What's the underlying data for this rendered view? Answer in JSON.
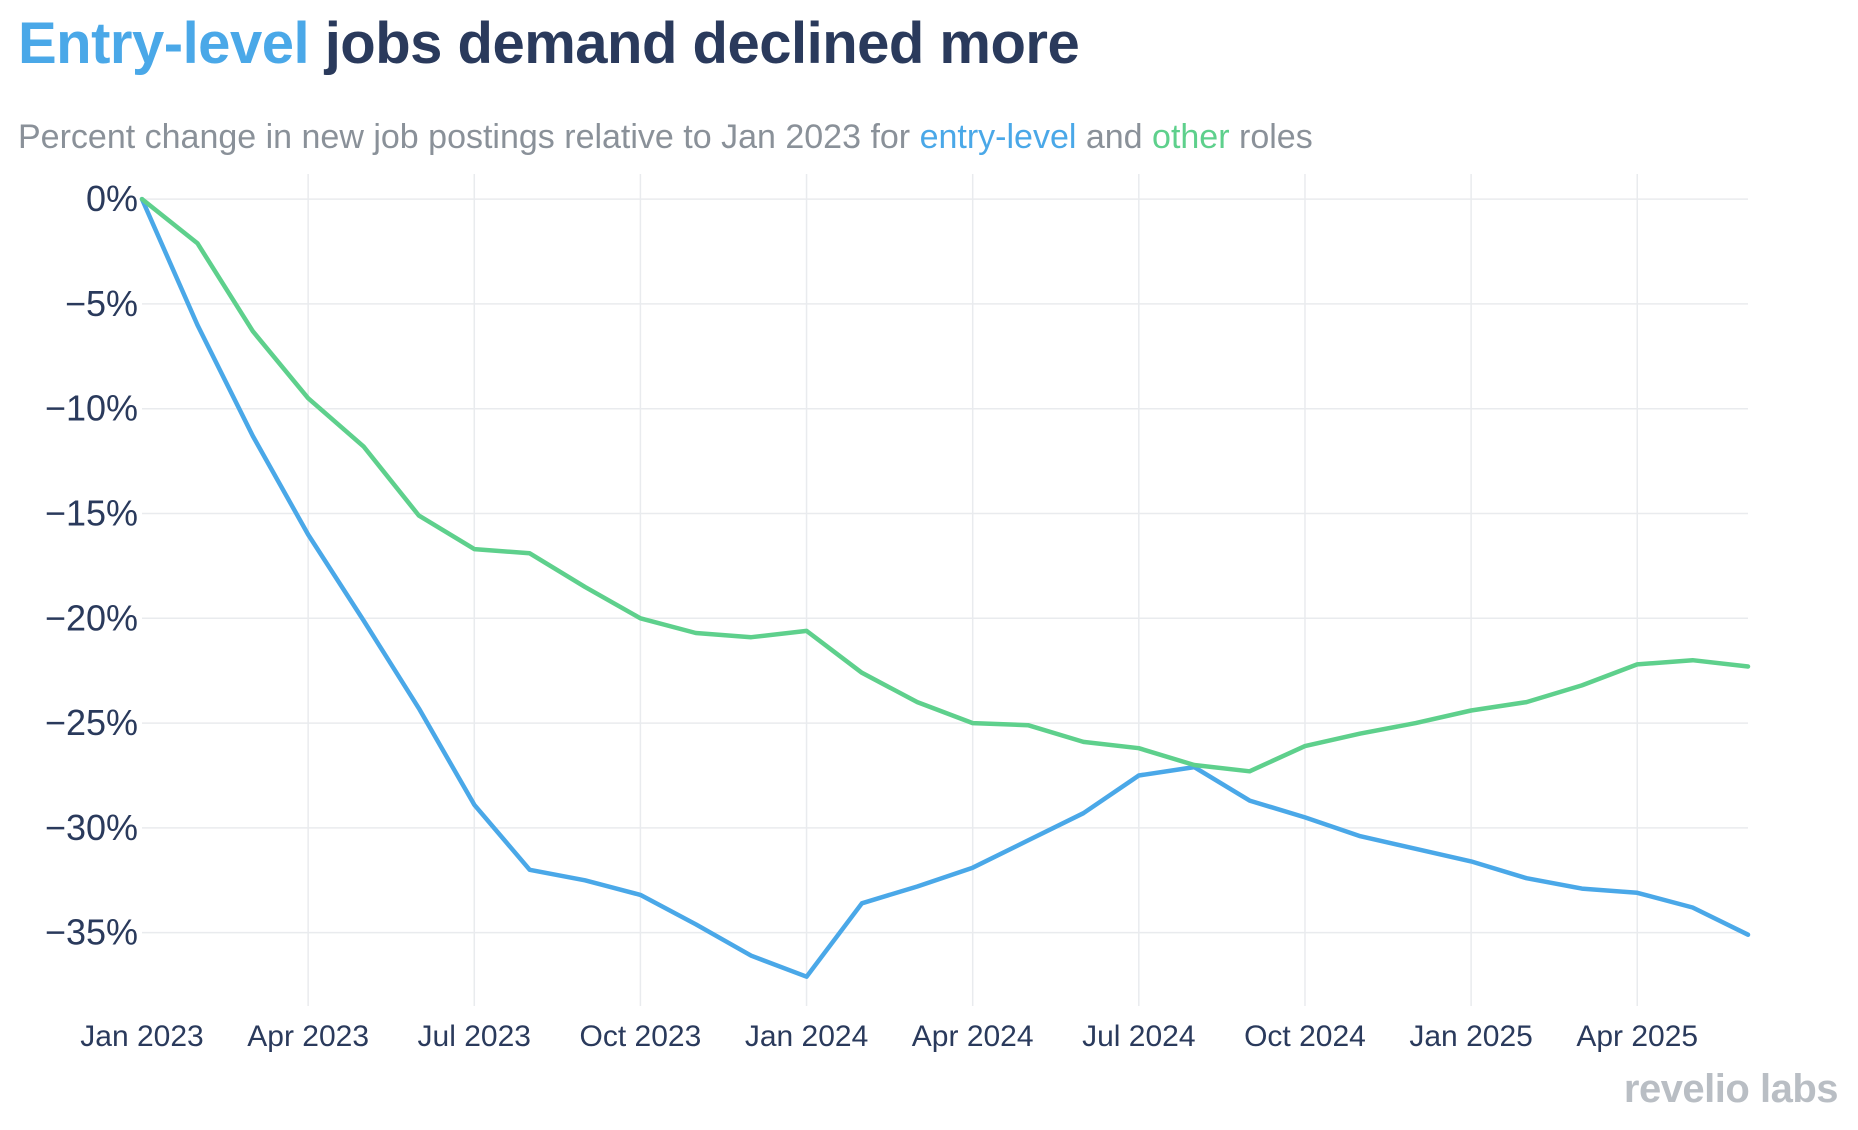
{
  "header": {
    "title_highlight": "Entry-level",
    "title_rest": " jobs demand declined more",
    "subtitle_pre": "Percent change in new job postings relative to Jan 2023 for ",
    "subtitle_entry": "entry-level",
    "subtitle_mid": " and ",
    "subtitle_other": "other",
    "subtitle_post": " roles"
  },
  "colors": {
    "entry_level": "#4aa8e8",
    "other": "#5ed08c",
    "title_dark": "#2a3a5c",
    "grid": "#e9ebee"
  },
  "branding": {
    "logo_text": "revelio labs"
  },
  "chart_data": {
    "type": "line",
    "title": "Entry-level jobs demand declined more",
    "subtitle": "Percent change in new job postings relative to Jan 2023 for entry-level and other roles",
    "x": [
      "2023-01",
      "2023-02",
      "2023-03",
      "2023-04",
      "2023-05",
      "2023-06",
      "2023-07",
      "2023-08",
      "2023-09",
      "2023-10",
      "2023-11",
      "2023-12",
      "2024-01",
      "2024-02",
      "2024-03",
      "2024-04",
      "2024-05",
      "2024-06",
      "2024-07",
      "2024-08",
      "2024-09",
      "2024-10",
      "2024-11",
      "2024-12",
      "2025-01",
      "2025-02",
      "2025-03",
      "2025-04",
      "2025-05",
      "2025-06"
    ],
    "x_tick_labels": [
      "Jan 2023",
      "Apr 2023",
      "Jul 2023",
      "Oct 2023",
      "Jan 2024",
      "Apr 2024",
      "Jul 2024",
      "Oct 2024",
      "Jan 2025",
      "Apr 2025"
    ],
    "y_tick_labels": [
      "0%",
      "−5%",
      "−10%",
      "−15%",
      "−20%",
      "−25%",
      "−30%",
      "−35%"
    ],
    "y_ticks": [
      0,
      -5,
      -10,
      -15,
      -20,
      -25,
      -30,
      -35
    ],
    "ylim": [
      -38.5,
      1.2
    ],
    "xlabel": "",
    "ylabel": "",
    "grid": true,
    "legend": "none (colored words in subtitle)",
    "series": [
      {
        "key": "entry",
        "values": [
          0,
          -6.0,
          -11.3,
          -16.0,
          -20.1,
          -24.3,
          -28.9,
          -32.0,
          -32.5,
          -33.2,
          -34.6,
          -36.1,
          -37.1,
          -33.6,
          -32.8,
          -31.9,
          -30.6,
          -29.3,
          -27.5,
          -27.1,
          -28.7,
          -29.5,
          -30.4,
          -31.0,
          -31.6,
          -32.4,
          -32.9,
          -33.1,
          -33.8,
          -35.1
        ]
      },
      {
        "key": "other",
        "values": [
          0,
          -2.1,
          -6.3,
          -9.5,
          -11.8,
          -15.1,
          -16.7,
          -16.9,
          -18.5,
          -20.0,
          -20.7,
          -20.9,
          -20.6,
          -22.6,
          -24.0,
          -25.0,
          -25.1,
          -25.9,
          -26.2,
          -27.0,
          -27.3,
          -26.1,
          -25.5,
          -25.0,
          -24.4,
          -24.0,
          -23.2,
          -22.2,
          -22.0,
          -22.3
        ]
      }
    ]
  }
}
